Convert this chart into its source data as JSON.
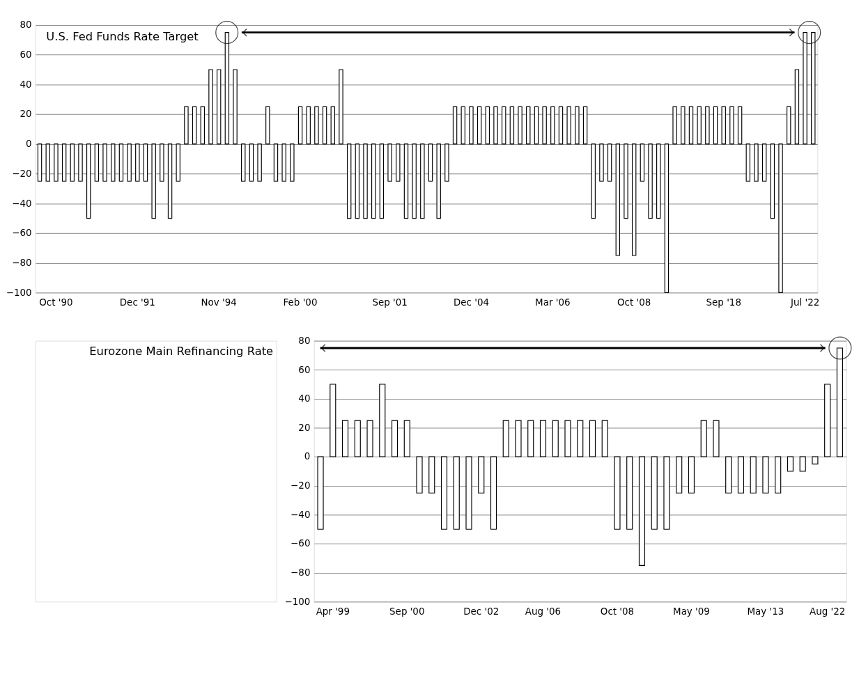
{
  "chart_data": [
    {
      "type": "bar",
      "title": "U.S. Fed Funds Rate Target",
      "categories": [
        null,
        null,
        "Oct '90",
        null,
        null,
        null,
        null,
        null,
        null,
        null,
        null,
        null,
        "Dec '91",
        null,
        null,
        null,
        null,
        null,
        null,
        null,
        null,
        null,
        "Nov '94",
        null,
        null,
        null,
        null,
        null,
        null,
        null,
        null,
        null,
        "Feb '00",
        null,
        null,
        null,
        null,
        null,
        null,
        null,
        null,
        null,
        null,
        "Sep '01",
        null,
        null,
        null,
        null,
        null,
        null,
        null,
        null,
        null,
        "Dec '04",
        null,
        null,
        null,
        null,
        null,
        null,
        null,
        null,
        null,
        "Mar '06",
        null,
        null,
        null,
        null,
        null,
        null,
        null,
        null,
        null,
        "Oct '08",
        null,
        null,
        null,
        null,
        null,
        null,
        null,
        null,
        null,
        null,
        "Sep '18",
        null,
        null,
        null,
        null,
        null,
        null,
        null,
        null,
        null,
        "Jul '22",
        null
      ],
      "values": [
        -25,
        -25,
        -25,
        -25,
        -25,
        -25,
        -50,
        -25,
        -25,
        -25,
        -25,
        -25,
        -25,
        -25,
        -50,
        -25,
        -50,
        -25,
        25,
        25,
        25,
        50,
        50,
        75,
        50,
        -25,
        -25,
        -25,
        25,
        -25,
        -25,
        -25,
        25,
        25,
        25,
        25,
        25,
        50,
        -50,
        -50,
        -50,
        -50,
        -50,
        -25,
        -25,
        -50,
        -50,
        -50,
        -25,
        -50,
        -25,
        25,
        25,
        25,
        25,
        25,
        25,
        25,
        25,
        25,
        25,
        25,
        25,
        25,
        25,
        25,
        25,
        25,
        -50,
        -25,
        -25,
        -75,
        -50,
        -75,
        -25,
        -50,
        -50,
        -100,
        25,
        25,
        25,
        25,
        25,
        25,
        25,
        25,
        25,
        -25,
        -25,
        -25,
        -50,
        -100,
        25,
        50,
        75,
        75
      ],
      "color": "#ffffff",
      "ylim": [
        -100,
        80
      ],
      "yticks": [
        -100,
        -80,
        -60,
        -40,
        -20,
        0,
        20,
        40,
        60,
        80
      ],
      "grid": "y"
    },
    {
      "type": "bar",
      "title": "Eurozone Main Refinancing Rate",
      "categories": [
        null,
        "Apr '99",
        null,
        null,
        null,
        null,
        null,
        "Sep '00",
        null,
        null,
        null,
        null,
        null,
        "Dec '02",
        null,
        null,
        null,
        null,
        "Aug '06",
        null,
        null,
        null,
        null,
        null,
        "Oct '08",
        null,
        null,
        null,
        null,
        null,
        "May '09",
        null,
        null,
        null,
        null,
        null,
        "May '13",
        null,
        null,
        null,
        null,
        "Aug '22",
        null
      ],
      "values": [
        -50,
        50,
        25,
        25,
        25,
        50,
        25,
        25,
        -25,
        -25,
        -50,
        -50,
        -50,
        -25,
        -50,
        25,
        25,
        25,
        25,
        25,
        25,
        25,
        25,
        25,
        -50,
        -50,
        -75,
        -50,
        -50,
        -25,
        -25,
        25,
        25,
        -25,
        -25,
        -25,
        -25,
        -25,
        -10,
        -10,
        -5,
        50,
        75
      ],
      "color": "#ffffff",
      "ylim": [
        -100,
        80
      ],
      "yticks": [
        -100,
        -80,
        -60,
        -40,
        -20,
        0,
        20,
        40,
        60,
        80
      ],
      "grid": "y"
    }
  ]
}
